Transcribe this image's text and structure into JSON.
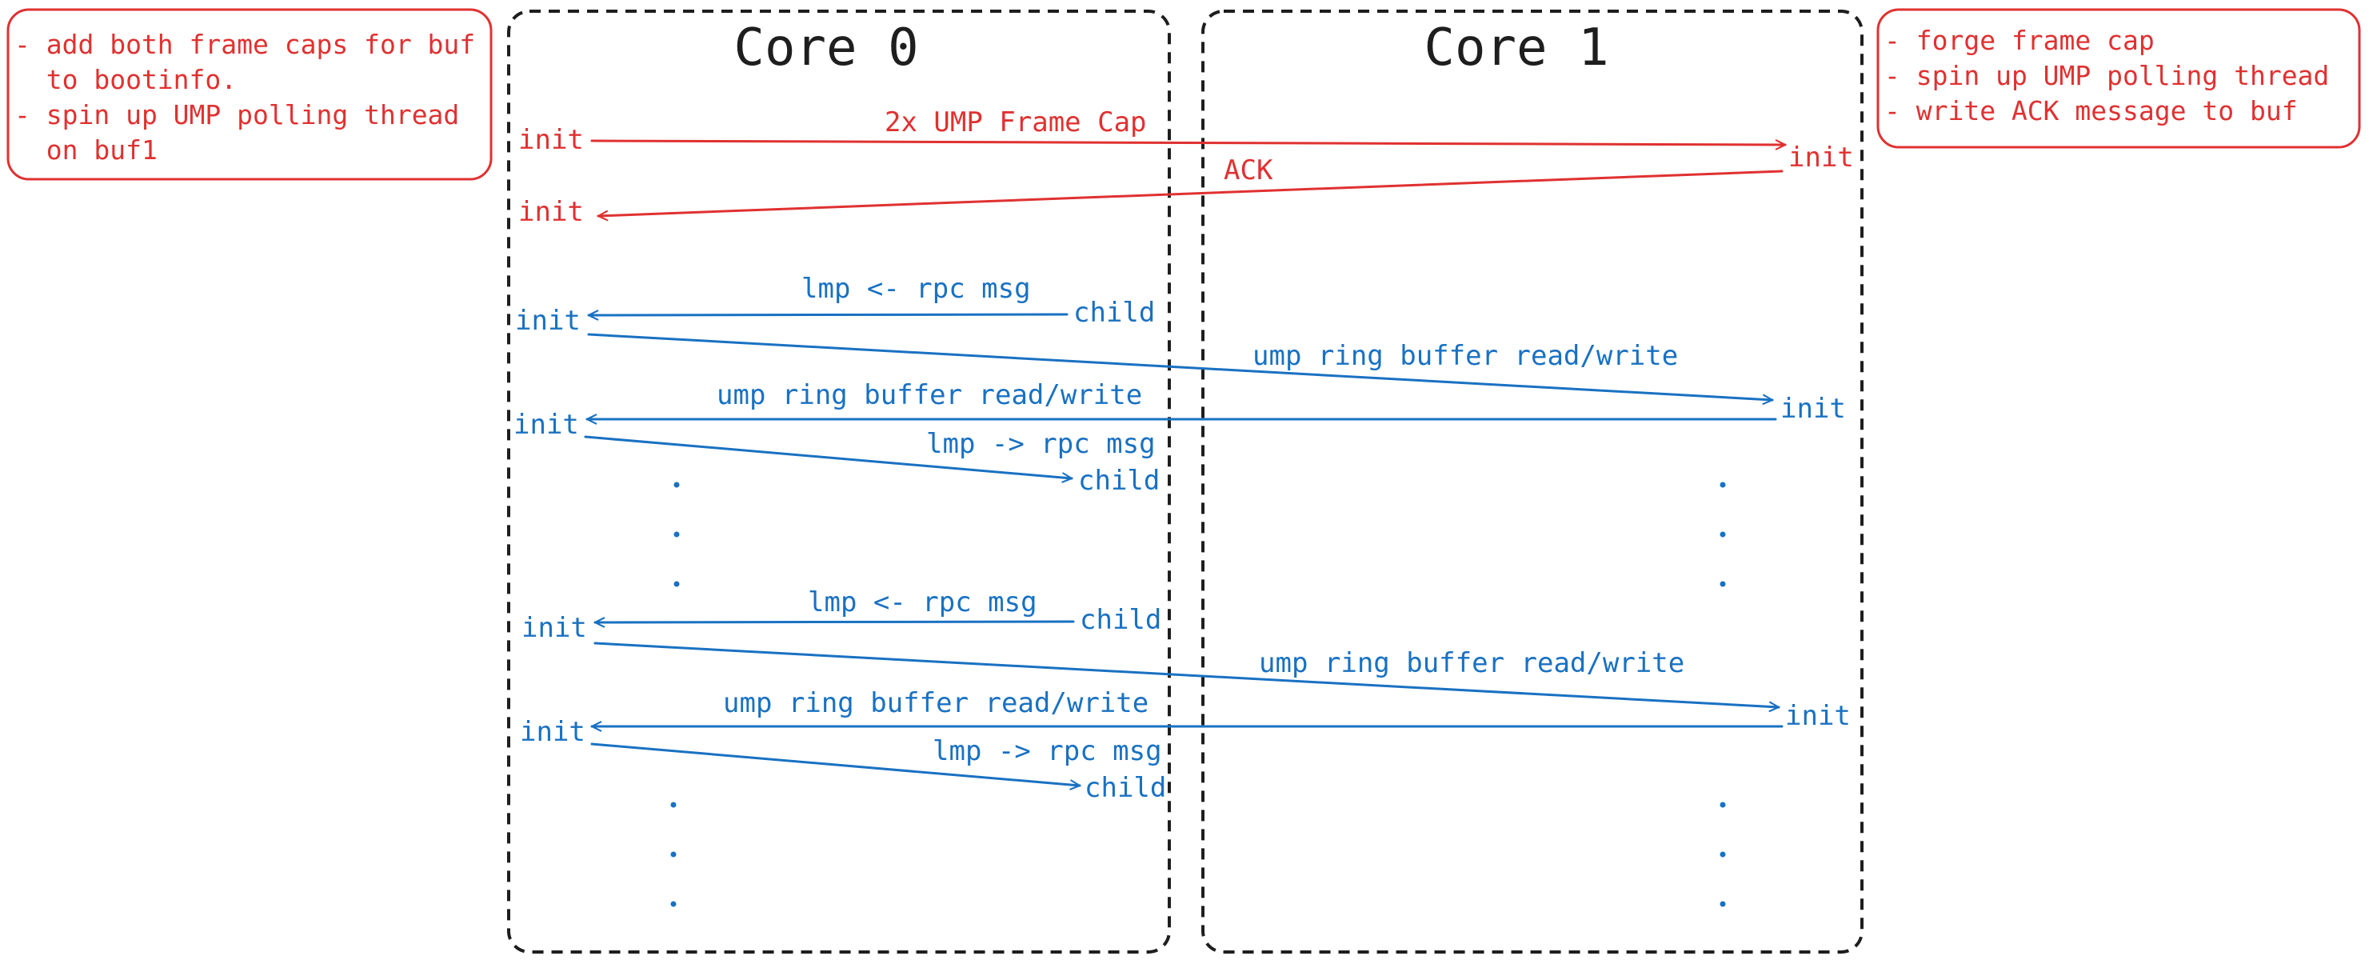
{
  "colors": {
    "red": "#e03131",
    "blue": "#1971c2",
    "ink": "#1e1e1e"
  },
  "cores": {
    "core0": {
      "title": "Core 0"
    },
    "core1": {
      "title": "Core 1"
    }
  },
  "notes": {
    "left": [
      "- add both frame caps for buf",
      "  to bootinfo.",
      "- spin up UMP polling thread",
      "  on buf1"
    ],
    "right": [
      "- forge frame cap",
      "- spin up UMP polling thread",
      "- write ACK message to buf"
    ]
  },
  "setup": {
    "init_a": "init",
    "frame_cap_label": "2x UMP Frame Cap",
    "init_b": "init",
    "ack_label": "ACK",
    "init_c": "init"
  },
  "sequence1": {
    "child_1": "child",
    "lmp_in_label": "lmp <- rpc msg",
    "init_1": "init",
    "ump_out_label": "ump ring buffer read/write",
    "init_core1": "init",
    "ump_in_label": "ump ring buffer read/write",
    "init_2": "init",
    "lmp_out_label": "lmp -> rpc msg",
    "child_2": "child"
  },
  "sequence2": {
    "child_1": "child",
    "lmp_in_label": "lmp <- rpc msg",
    "init_1": "init",
    "ump_out_label": "ump ring buffer read/write",
    "init_core1": "init",
    "ump_in_label": "ump ring buffer read/write",
    "init_2": "init",
    "lmp_out_label": "lmp -> rpc msg",
    "child_2": "child"
  },
  "ellipsis": "."
}
